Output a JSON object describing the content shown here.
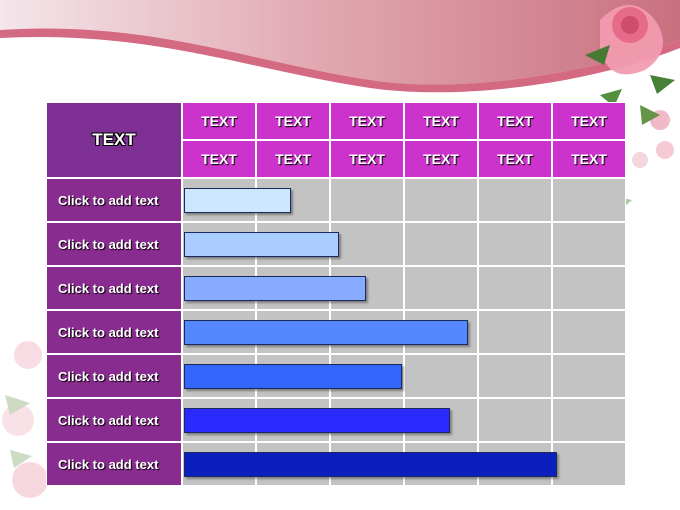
{
  "slide": {
    "corner_label": "TEXT",
    "header_row_1": [
      "TEXT",
      "TEXT",
      "TEXT",
      "TEXT",
      "TEXT",
      "TEXT"
    ],
    "header_row_2": [
      "TEXT",
      "TEXT",
      "TEXT",
      "TEXT",
      "TEXT",
      "TEXT"
    ],
    "rows": [
      {
        "label": "Click to add text",
        "value": 0.24,
        "color": "#cce6ff"
      },
      {
        "label": "Click to add text",
        "value": 0.35,
        "color": "#aaccff"
      },
      {
        "label": "Click to add text",
        "value": 0.41,
        "color": "#88aaff"
      },
      {
        "label": "Click to add text",
        "value": 0.64,
        "color": "#5588ff"
      },
      {
        "label": "Click to add text",
        "value": 0.49,
        "color": "#3366ff"
      },
      {
        "label": "Click to add text",
        "value": 0.6,
        "color": "#2a2aff"
      },
      {
        "label": "Click to add text",
        "value": 0.84,
        "color": "#0a1fbb"
      }
    ]
  },
  "colors": {
    "header_primary": "#cc33cc",
    "label_column": "#882d8f",
    "grid_cell": "#c3c3c3"
  }
}
